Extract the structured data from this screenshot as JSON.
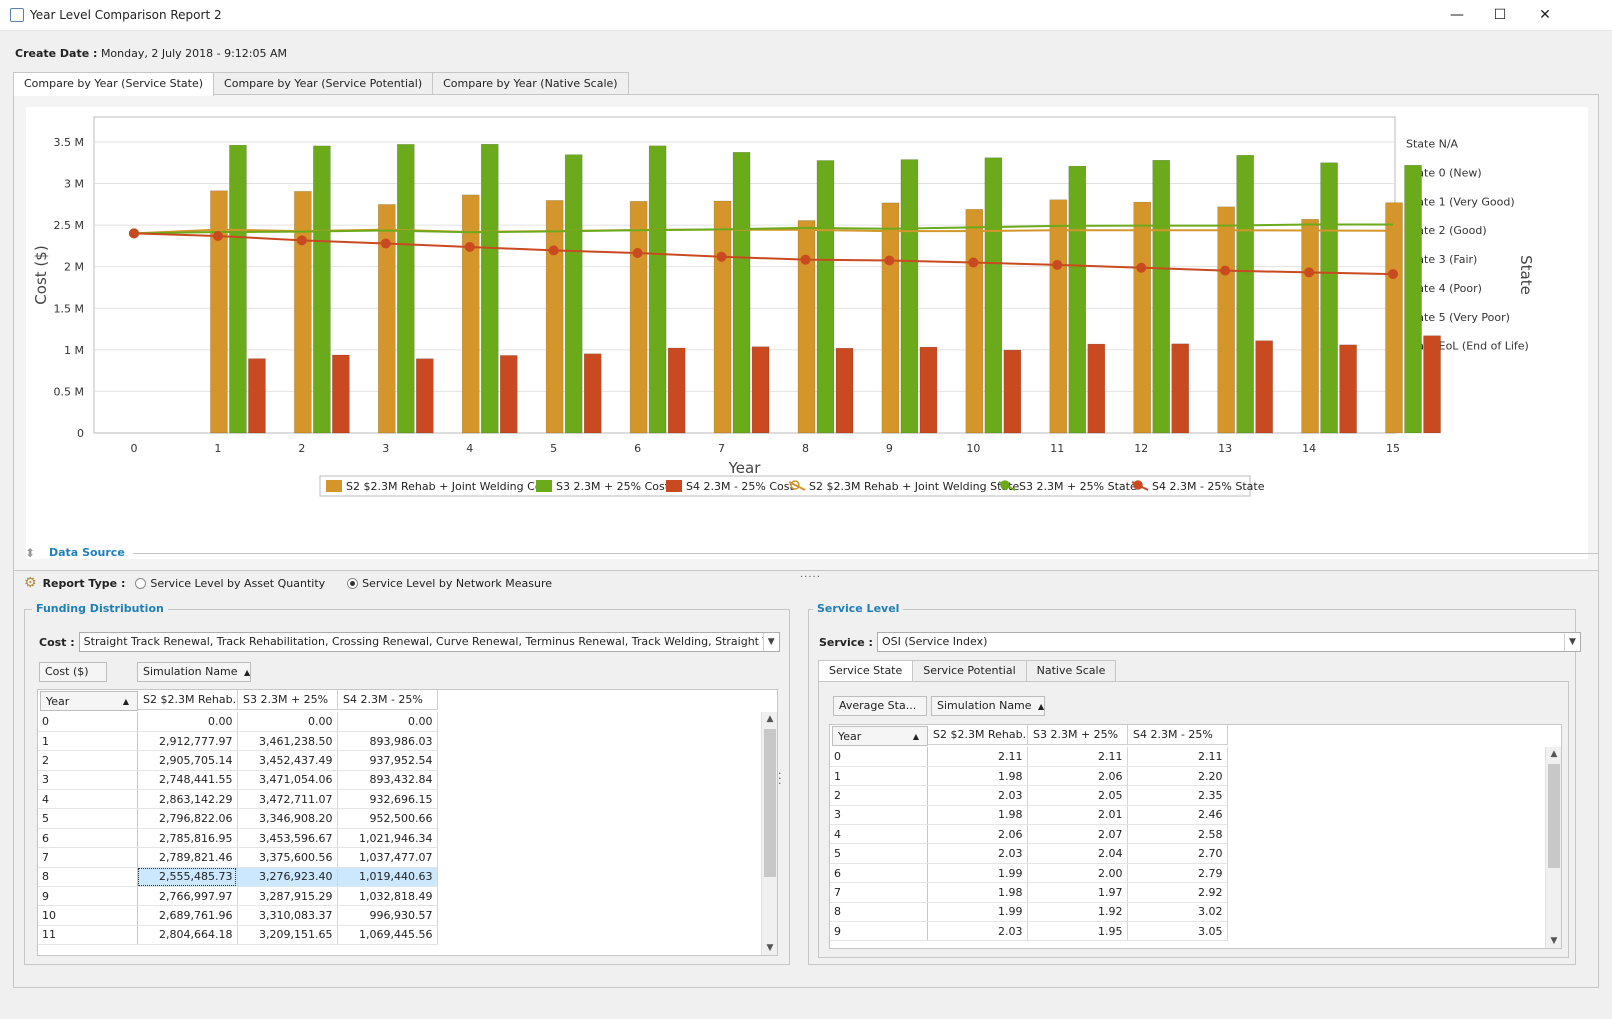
{
  "window": {
    "title": "Year Level Comparison Report 2",
    "minimize": "—",
    "maximize": "☐",
    "close": "✕"
  },
  "create_date": {
    "label": "Create Date :",
    "value": "Monday, 2 July 2018 - 9:12:05 AM"
  },
  "tabs": [
    {
      "label": "Compare by Year (Service State)",
      "active": true
    },
    {
      "label": "Compare by Year (Service Potential)",
      "active": false
    },
    {
      "label": "Compare by Year (Native Scale)",
      "active": false
    }
  ],
  "chart_data": {
    "type": "bar",
    "xlabel": "Year",
    "ylabel": "Cost ($)",
    "y2label": "State",
    "x": [
      0,
      1,
      2,
      3,
      4,
      5,
      6,
      7,
      8,
      9,
      10,
      11,
      12,
      13,
      14,
      15
    ],
    "ylim": [
      0,
      3800000
    ],
    "yticks": [
      "0",
      "0.5 M",
      "1 M",
      "1.5 M",
      "2 M",
      "2.5 M",
      "3 M",
      "3.5 M"
    ],
    "y2ticks": [
      "State N/A",
      "State 0 (New)",
      "State 1 (Very Good)",
      "State 2 (Good)",
      "State 3 (Fair)",
      "State 4 (Poor)",
      "State 5 (Very Poor)",
      "State EoL (End of Life)"
    ],
    "grid": true,
    "legend_position": "bottom",
    "colors": {
      "s2": "#D4962A",
      "s3": "#6AAA1B",
      "s4": "#C94A20"
    },
    "bar_series": [
      {
        "name": "S2 $2.3M Rehab + Joint Welding Cost",
        "values": [
          0,
          2912777.97,
          2905705.14,
          2748441.55,
          2863142.29,
          2796822.06,
          2785816.95,
          2789821.46,
          2555485.73,
          2766997.97,
          2689761.96,
          2804664.18,
          2776740,
          2720000,
          2570000,
          2770000
        ]
      },
      {
        "name": "S3 2.3M + 25% Cost",
        "values": [
          0,
          3461238.5,
          3452437.49,
          3471054.06,
          3472711.07,
          3346908.2,
          3453596.67,
          3375600.56,
          3276923.4,
          3287915.29,
          3310083.37,
          3209151.65,
          3280151.69,
          3340000,
          3250000,
          3220000
        ]
      },
      {
        "name": "S4 2.3M - 25% Cost",
        "values": [
          0,
          893986.03,
          937952.54,
          893432.84,
          932696.15,
          952500.66,
          1021946.34,
          1037477.07,
          1019440.63,
          1032818.49,
          996930.57,
          1069445.56,
          1072352.51,
          1110000,
          1060000,
          1170000
        ]
      }
    ],
    "line_series": [
      {
        "name": "S2 $2.3M Rehab + Joint Welding State",
        "values": [
          2.11,
          1.98,
          2.03,
          1.98,
          2.06,
          2.03,
          1.99,
          1.98,
          1.99,
          2.03,
          2.03,
          2.0,
          2.0,
          2.0,
          2.01,
          2.02
        ]
      },
      {
        "name": "S3 2.3M + 25% State",
        "values": [
          2.11,
          2.06,
          2.05,
          2.01,
          2.07,
          2.04,
          2.0,
          1.97,
          1.92,
          1.95,
          1.9,
          1.85,
          1.84,
          1.84,
          1.8,
          1.8
        ]
      },
      {
        "name": "S4 2.3M - 25% State",
        "values": [
          2.11,
          2.2,
          2.35,
          2.46,
          2.58,
          2.7,
          2.79,
          2.92,
          3.02,
          3.05,
          3.12,
          3.2,
          3.3,
          3.4,
          3.46,
          3.52
        ]
      }
    ]
  },
  "data_source": {
    "title": "Data Source"
  },
  "report_type": {
    "label": "Report Type :",
    "options": [
      "Service Level by Asset Quantity",
      "Service Level by Network Measure"
    ],
    "selected": 1
  },
  "funding": {
    "title": "Funding Distribution",
    "cost_label": "Cost :",
    "cost_value": "Straight Track Renewal, Track Rehabilitation, Crossing Renewal, Curve Renewal, Terminus Renewal, Track Welding, Straight Track Segreg...",
    "data_field": "Cost ($)",
    "column_field": "Simulation Name",
    "row_field": "Year",
    "columns": [
      "S2 $2.3M Rehab...",
      "S3 2.3M + 25%",
      "S4 2.3M - 25%"
    ],
    "rows": [
      [
        "0",
        "0.00",
        "0.00",
        "0.00"
      ],
      [
        "1",
        "2,912,777.97",
        "3,461,238.50",
        "893,986.03"
      ],
      [
        "2",
        "2,905,705.14",
        "3,452,437.49",
        "937,952.54"
      ],
      [
        "3",
        "2,748,441.55",
        "3,471,054.06",
        "893,432.84"
      ],
      [
        "4",
        "2,863,142.29",
        "3,472,711.07",
        "932,696.15"
      ],
      [
        "5",
        "2,796,822.06",
        "3,346,908.20",
        "952,500.66"
      ],
      [
        "6",
        "2,785,816.95",
        "3,453,596.67",
        "1,021,946.34"
      ],
      [
        "7",
        "2,789,821.46",
        "3,375,600.56",
        "1,037,477.07"
      ],
      [
        "8",
        "2,555,485.73",
        "3,276,923.40",
        "1,019,440.63"
      ],
      [
        "9",
        "2,766,997.97",
        "3,287,915.29",
        "1,032,818.49"
      ],
      [
        "10",
        "2,689,761.96",
        "3,310,083.37",
        "996,930.57"
      ],
      [
        "11",
        "2,804,664.18",
        "3,209,151.65",
        "1,069,445.56"
      ]
    ],
    "selected_row": 8
  },
  "service_level": {
    "title": "Service Level",
    "service_label": "Service :",
    "service_value": "OSI (Service Index)",
    "tabs": [
      "Service State",
      "Service Potential",
      "Native Scale"
    ],
    "data_field": "Average Sta...",
    "column_field": "Simulation Name",
    "row_field": "Year",
    "columns": [
      "S2 $2.3M Rehab...",
      "S3 2.3M + 25%",
      "S4 2.3M - 25%"
    ],
    "rows": [
      [
        "0",
        "2.11",
        "2.11",
        "2.11"
      ],
      [
        "1",
        "1.98",
        "2.06",
        "2.20"
      ],
      [
        "2",
        "2.03",
        "2.05",
        "2.35"
      ],
      [
        "3",
        "1.98",
        "2.01",
        "2.46"
      ],
      [
        "4",
        "2.06",
        "2.07",
        "2.58"
      ],
      [
        "5",
        "2.03",
        "2.04",
        "2.70"
      ],
      [
        "6",
        "1.99",
        "2.00",
        "2.79"
      ],
      [
        "7",
        "1.98",
        "1.97",
        "2.92"
      ],
      [
        "8",
        "1.99",
        "1.92",
        "3.02"
      ],
      [
        "9",
        "2.03",
        "1.95",
        "3.05"
      ]
    ]
  }
}
